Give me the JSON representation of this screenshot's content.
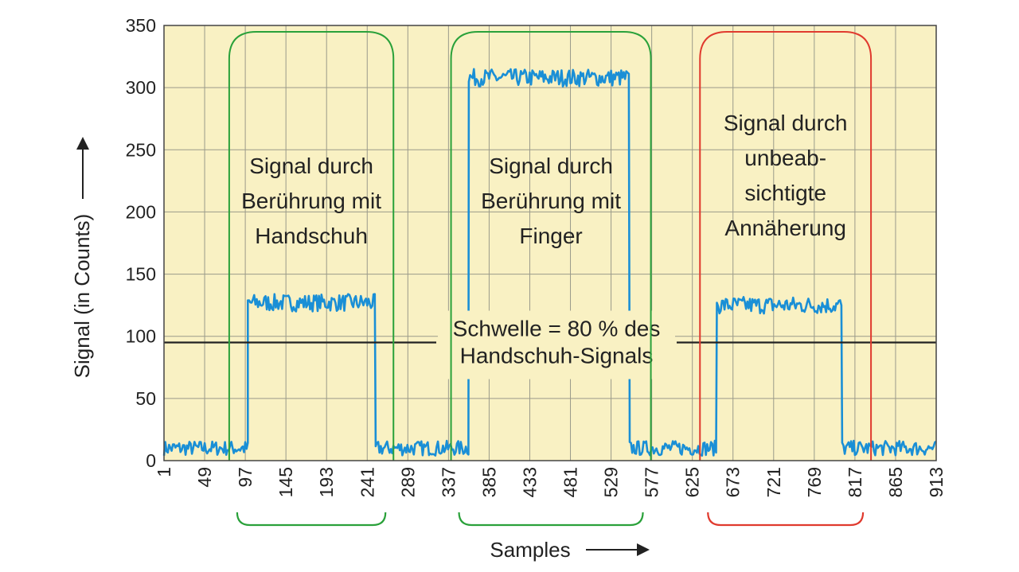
{
  "chart_data": {
    "type": "line",
    "xlabel": "Samples",
    "ylabel": "Signal (in Counts)",
    "xlim": [
      1,
      913
    ],
    "ylim": [
      0,
      350
    ],
    "x_ticks": [
      1,
      49,
      97,
      145,
      193,
      241,
      289,
      337,
      385,
      433,
      481,
      529,
      577,
      625,
      673,
      721,
      769,
      817,
      865,
      913
    ],
    "y_ticks": [
      0,
      50,
      100,
      150,
      200,
      250,
      300,
      350
    ],
    "grid": true,
    "background_color": "#f9f1c3",
    "series": [
      {
        "color": "#1a8fd6",
        "segments": [
          {
            "x_start": 1,
            "x_end": 100,
            "level": 10
          },
          {
            "x_start": 100,
            "x_end": 251,
            "level": 127
          },
          {
            "x_start": 251,
            "x_end": 361,
            "level": 10
          },
          {
            "x_start": 361,
            "x_end": 551,
            "level": 308
          },
          {
            "x_start": 551,
            "x_end": 654,
            "level": 10
          },
          {
            "x_start": 654,
            "x_end": 802,
            "level": 125
          },
          {
            "x_start": 802,
            "x_end": 913,
            "level": 10
          }
        ]
      }
    ],
    "threshold": {
      "value": 95,
      "color": "#222222",
      "label_lines": [
        "Schwelle = 80 % des",
        "Handschuh-Signals"
      ]
    },
    "regions": [
      {
        "x_start": 78,
        "x_end": 272,
        "color": "#2aa13a",
        "label_lines": [
          "Signal durch",
          "Berührung mit",
          "Handschuh"
        ]
      },
      {
        "x_start": 340,
        "x_end": 576,
        "color": "#2aa13a",
        "label_lines": [
          "Signal durch",
          "Berührung mit",
          "Finger"
        ]
      },
      {
        "x_start": 634,
        "x_end": 836,
        "color": "#e03a2e",
        "label_lines": [
          "Signal durch",
          "unbeab-",
          "sichtigte",
          "Annäherung"
        ]
      }
    ]
  }
}
